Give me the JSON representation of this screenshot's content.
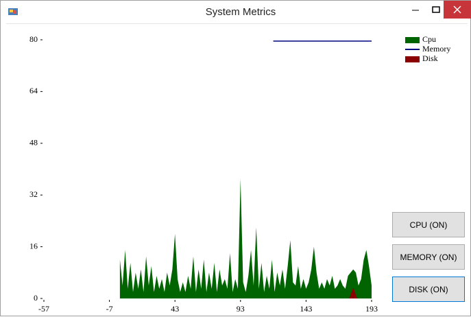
{
  "window": {
    "title": "System Metrics"
  },
  "chart_data": {
    "type": "area",
    "xlim": [
      -57,
      193
    ],
    "xticks": [
      -57,
      -7,
      43,
      93,
      143,
      193
    ],
    "ylim": [
      0,
      80
    ],
    "yticks": [
      0,
      16,
      32,
      48,
      64,
      80
    ],
    "legend": "top-right",
    "series": [
      {
        "name": "Cpu",
        "type": "area",
        "color": "#006400",
        "x": [
          1,
          3,
          5,
          7,
          9,
          11,
          13,
          15,
          17,
          19,
          21,
          23,
          25,
          27,
          29,
          31,
          33,
          35,
          37,
          39,
          41,
          43,
          45,
          47,
          49,
          51,
          53,
          55,
          57,
          59,
          61,
          63,
          65,
          67,
          69,
          71,
          73,
          75,
          77,
          79,
          81,
          83,
          85,
          87,
          89,
          91,
          93,
          95,
          97,
          99,
          101,
          103,
          105,
          107,
          109,
          111,
          113,
          115,
          117,
          119,
          121,
          123,
          125,
          127,
          129,
          131,
          133,
          135,
          137,
          139,
          141,
          143,
          145,
          147,
          149,
          151,
          153,
          155,
          157,
          159,
          161,
          163,
          165,
          167,
          169,
          171,
          173,
          175,
          177,
          179,
          181,
          183,
          185,
          187,
          189,
          191,
          193
        ],
        "values": [
          12,
          4,
          15,
          3,
          11,
          2,
          8,
          3,
          9,
          2,
          13,
          4,
          10,
          2,
          7,
          3,
          6,
          2,
          8,
          4,
          9,
          20,
          6,
          2,
          5,
          2,
          7,
          3,
          13,
          2,
          9,
          3,
          12,
          2,
          8,
          3,
          11,
          2,
          9,
          4,
          6,
          3,
          14,
          2,
          6,
          3,
          37,
          5,
          2,
          7,
          15,
          4,
          22,
          3,
          11,
          2,
          7,
          3,
          12,
          2,
          8,
          4,
          9,
          3,
          10,
          18,
          5,
          4,
          10,
          3,
          6,
          3,
          5,
          9,
          16,
          8,
          3,
          5,
          3,
          6,
          4,
          7,
          3,
          4,
          6,
          4,
          3,
          7,
          8,
          9,
          8,
          4,
          6,
          12,
          15,
          10,
          4
        ]
      },
      {
        "name": "Memory",
        "type": "line",
        "color": "#000080",
        "x": [
          118,
          193
        ],
        "values": [
          79.6,
          79.6
        ]
      },
      {
        "name": "Disk",
        "type": "area",
        "color": "#8b0000",
        "x": [
          176,
          179,
          182
        ],
        "values": [
          0,
          3.4,
          0
        ]
      }
    ]
  },
  "buttons": [
    "CPU (ON)",
    "MEMORY (ON)",
    "DISK (ON)"
  ]
}
